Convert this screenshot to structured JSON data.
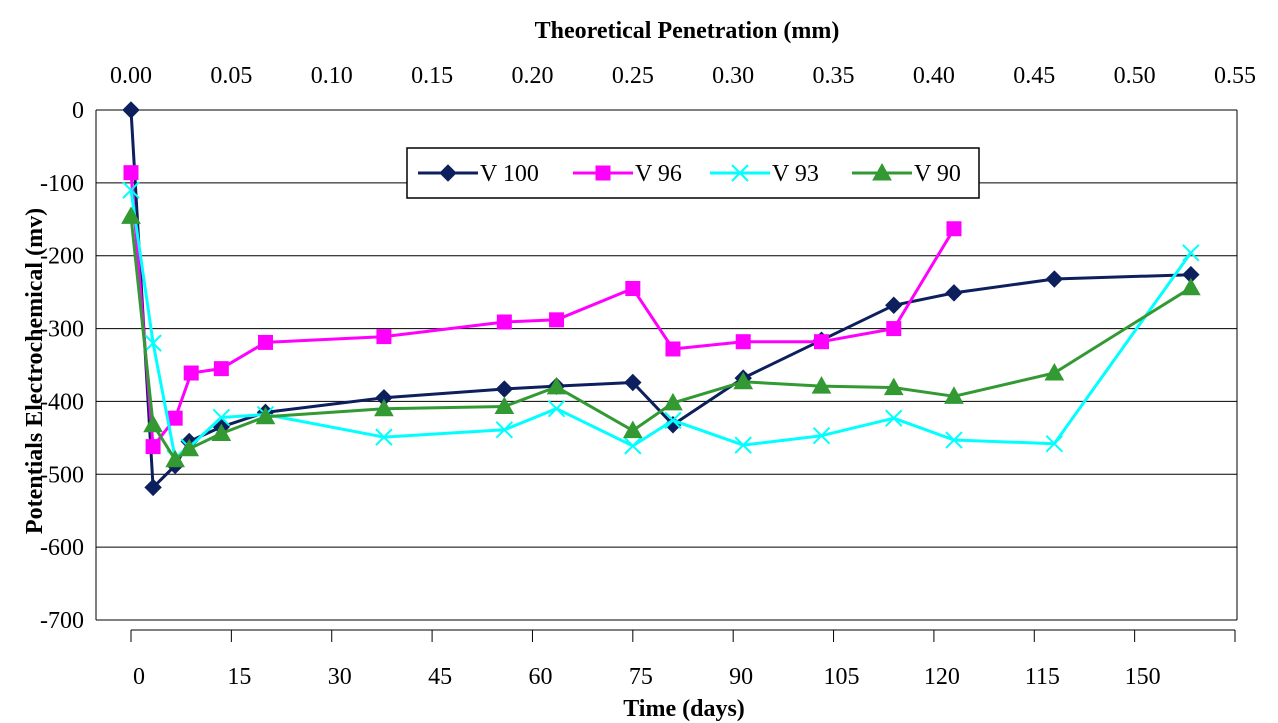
{
  "chart_data": {
    "type": "line",
    "title": "",
    "top_axis": {
      "label": "Theoretical Penetration (mm)",
      "ticks": [
        "0.00",
        "0.05",
        "0.10",
        "0.15",
        "0.20",
        "0.25",
        "0.30",
        "0.35",
        "0.40",
        "0.45",
        "0.50",
        "0.55"
      ],
      "range": [
        0,
        0.55
      ]
    },
    "xlabel": "Time (days)",
    "x_ticks": [
      "0",
      "15",
      "30",
      "45",
      "60",
      "75",
      "90",
      "105",
      "120",
      "115",
      "150"
    ],
    "x_axis_note": "category-spaced ticks; series plotted against theoretical penetration (mm)",
    "ylabel": "Potentials Electrochemical  (mv)",
    "y_ticks": [
      "0",
      "-100",
      "-200",
      "-300",
      "-400",
      "-500",
      "-600",
      "-700"
    ],
    "ylim": [
      -700,
      0
    ],
    "grid": "horizontal major gridlines",
    "legend_position": "top-center",
    "series": [
      {
        "name": "V 100",
        "color": "#0d1f5c",
        "marker": "diamond",
        "points": [
          [
            0.0,
            0
          ],
          [
            0.011,
            -518
          ],
          [
            0.022,
            -488
          ],
          [
            0.029,
            -455
          ],
          [
            0.045,
            -435
          ],
          [
            0.067,
            -415
          ],
          [
            0.126,
            -395
          ],
          [
            0.186,
            -383
          ],
          [
            0.212,
            -379
          ],
          [
            0.25,
            -374
          ],
          [
            0.27,
            -432
          ],
          [
            0.305,
            -368
          ],
          [
            0.344,
            -316
          ],
          [
            0.38,
            -268
          ],
          [
            0.41,
            -251
          ],
          [
            0.46,
            -232
          ],
          [
            0.528,
            -226
          ]
        ]
      },
      {
        "name": "V 96",
        "color": "#ff00ff",
        "marker": "square",
        "points": [
          [
            0.0,
            -86
          ],
          [
            0.011,
            -462
          ],
          [
            0.022,
            -423
          ],
          [
            0.03,
            -361
          ],
          [
            0.045,
            -355
          ],
          [
            0.067,
            -319
          ],
          [
            0.126,
            -311
          ],
          [
            0.186,
            -291
          ],
          [
            0.212,
            -288
          ],
          [
            0.25,
            -245
          ],
          [
            0.27,
            -328
          ],
          [
            0.305,
            -318
          ],
          [
            0.344,
            -318
          ],
          [
            0.38,
            -300
          ],
          [
            0.41,
            -163
          ]
        ]
      },
      {
        "name": "V 93",
        "color": "#00ffff",
        "marker": "x",
        "points": [
          [
            0.0,
            -110
          ],
          [
            0.011,
            -320
          ],
          [
            0.022,
            -478
          ],
          [
            0.029,
            -463
          ],
          [
            0.045,
            -422
          ],
          [
            0.067,
            -418
          ],
          [
            0.126,
            -449
          ],
          [
            0.186,
            -439
          ],
          [
            0.212,
            -410
          ],
          [
            0.25,
            -461
          ],
          [
            0.27,
            -426
          ],
          [
            0.305,
            -460
          ],
          [
            0.344,
            -447
          ],
          [
            0.38,
            -423
          ],
          [
            0.41,
            -453
          ],
          [
            0.46,
            -458
          ],
          [
            0.528,
            -196
          ]
        ]
      },
      {
        "name": "V 90",
        "color": "#339933",
        "marker": "triangle",
        "points": [
          [
            0.0,
            -146
          ],
          [
            0.011,
            -432
          ],
          [
            0.022,
            -480
          ],
          [
            0.029,
            -465
          ],
          [
            0.045,
            -444
          ],
          [
            0.067,
            -421
          ],
          [
            0.126,
            -410
          ],
          [
            0.186,
            -407
          ],
          [
            0.212,
            -380
          ],
          [
            0.25,
            -440
          ],
          [
            0.27,
            -402
          ],
          [
            0.305,
            -373
          ],
          [
            0.344,
            -379
          ],
          [
            0.38,
            -381
          ],
          [
            0.41,
            -393
          ],
          [
            0.46,
            -361
          ],
          [
            0.528,
            -244
          ]
        ]
      }
    ]
  }
}
